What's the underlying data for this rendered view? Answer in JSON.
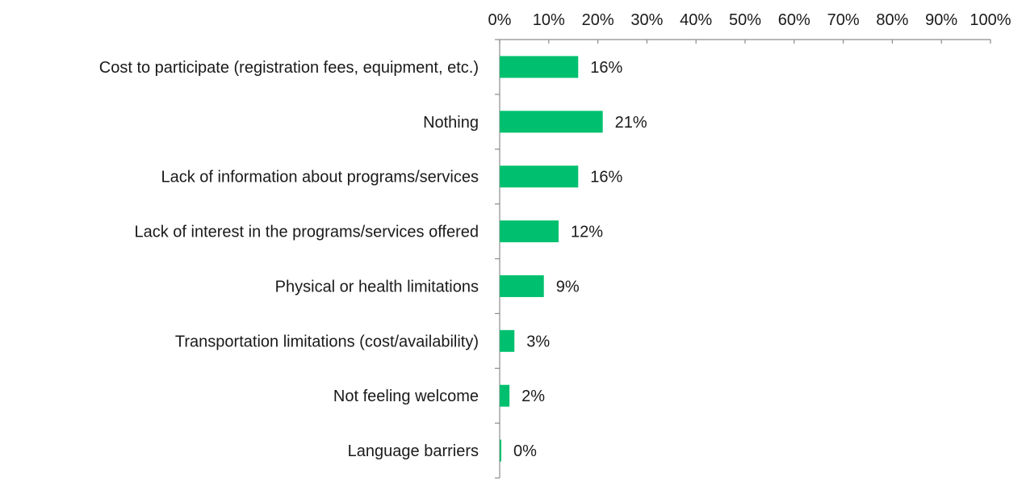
{
  "chart_data": {
    "type": "bar",
    "orientation": "horizontal",
    "categories": [
      "Cost to participate (registration fees, equipment, etc.)",
      "Nothing",
      "Lack of information about programs/services",
      "Lack of interest in the programs/services offered",
      "Physical or health limitations",
      "Transportation limitations (cost/availability)",
      "Not feeling welcome",
      "Language barriers"
    ],
    "values": [
      16,
      21,
      16,
      12,
      9,
      3,
      2,
      0
    ],
    "value_labels": [
      "16%",
      "21%",
      "16%",
      "12%",
      "9%",
      "3%",
      "2%",
      "0%"
    ],
    "x_ticks": [
      0,
      10,
      20,
      30,
      40,
      50,
      60,
      70,
      80,
      90,
      100
    ],
    "x_tick_labels": [
      "0%",
      "10%",
      "20%",
      "30%",
      "40%",
      "50%",
      "60%",
      "70%",
      "80%",
      "90%",
      "100%"
    ],
    "xlim": [
      0,
      100
    ],
    "x_axis_position": "top",
    "grid": false,
    "legend": "none",
    "bar_color": "#00c06f",
    "axis_color": "#8c8c8c",
    "title": "",
    "xlabel": "",
    "ylabel": ""
  }
}
